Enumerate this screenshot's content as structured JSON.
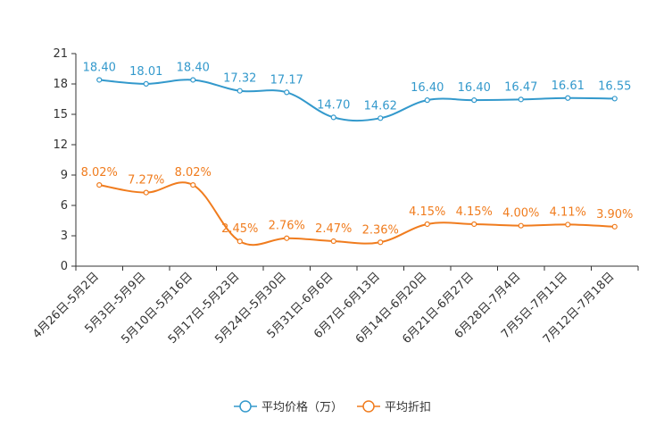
{
  "chart_data": {
    "type": "line",
    "title": "",
    "xlabel": "",
    "ylabel": "",
    "ylim": [
      0,
      21
    ],
    "yticks": [
      0,
      3,
      6,
      9,
      12,
      15,
      18,
      21
    ],
    "ytick_labels": [
      "0",
      "3",
      "6",
      "9",
      "12",
      "15",
      "18",
      "21"
    ],
    "categories": [
      "4月26日-5月2日",
      "5月3日-5月9日",
      "5月10日-5月16日",
      "5月17日-5月23日",
      "5月24日-5月30日",
      "5月31日-6月6日",
      "6月7日-6月13日",
      "6月14日-6月20日",
      "6月21日-6月27日",
      "6月28日-7月4日",
      "7月5日-7月11日",
      "7月12日-7月18日"
    ],
    "series": [
      {
        "name": "平均价格（万）",
        "color": "#3399cc",
        "values": [
          18.4,
          18.01,
          18.4,
          17.32,
          17.17,
          14.7,
          14.62,
          16.4,
          16.4,
          16.47,
          16.61,
          16.55
        ],
        "labels": [
          "18.40",
          "18.01",
          "18.40",
          "17.32",
          "17.17",
          "14.70",
          "14.62",
          "16.40",
          "16.40",
          "16.47",
          "16.61",
          "16.55"
        ]
      },
      {
        "name": "平均折扣",
        "color": "#f07c1e",
        "values": [
          8.02,
          7.27,
          8.02,
          2.45,
          2.76,
          2.47,
          2.36,
          4.15,
          4.15,
          4.0,
          4.11,
          3.9
        ],
        "labels": [
          "8.02%",
          "7.27%",
          "8.02%",
          "2.45%",
          "2.76%",
          "2.47%",
          "2.36%",
          "4.15%",
          "4.15%",
          "4.00%",
          "4.11%",
          "3.90%"
        ]
      }
    ],
    "legend_position": "bottom-center"
  }
}
